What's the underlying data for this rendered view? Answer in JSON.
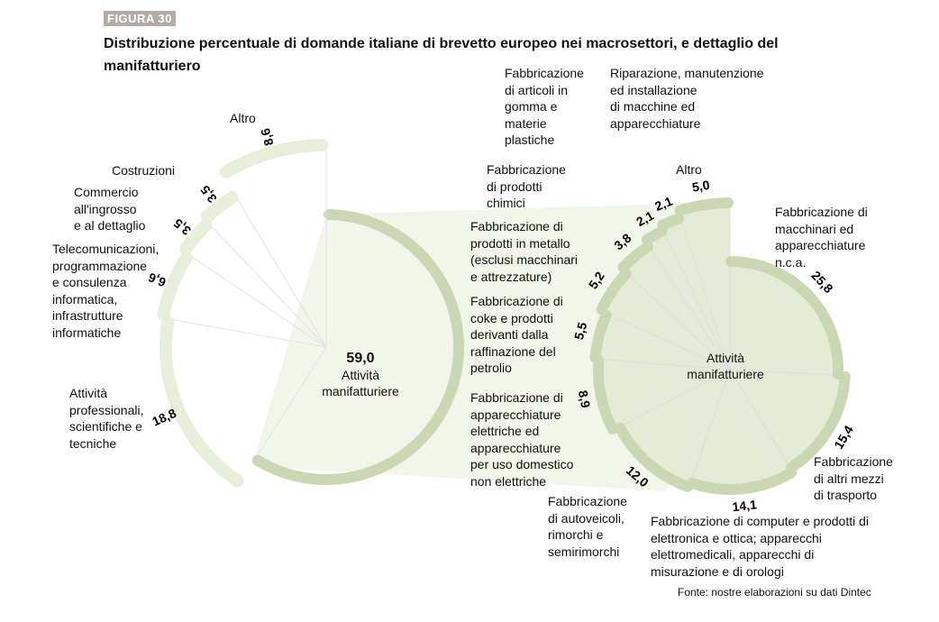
{
  "figure_label": "FIGURA 30",
  "title": "Distribuzione percentuale di domande italiane di brevetto europeo nei macrosettori, e dettaglio del manifatturiero",
  "source": "Fonte: nostre elaborazioni su dati Dintec",
  "chart_data": [
    {
      "type": "pie",
      "variant": "spiral",
      "categories": [
        "Attività manifatturiere",
        "Attività professionali, scientifiche e tecniche",
        "Telecomunicazioni, programmazione e consulenza informatica, infrastrutture informatiche",
        "Commercio all'ingrosso e al dettaglio",
        "Costruzioni",
        "Altro"
      ],
      "values": [
        59.0,
        18.8,
        6.6,
        3.5,
        3.5,
        8.6
      ],
      "labels": [
        "59,0",
        "18,8",
        "6,6",
        "3,5",
        "3,5",
        "8,6"
      ],
      "colors": [
        "#c9d8b2",
        "#e7eed9",
        "#e7eed9",
        "#e7eed9",
        "#e7eed9",
        "#e7eed9"
      ]
    },
    {
      "type": "pie",
      "variant": "spiral",
      "center_label": "Attività manifatturiere",
      "categories": [
        "Fabbricazione di macchinari ed apparecchiature n.c.a.",
        "Fabbricazione di altri mezzi di trasporto",
        "Fabbricazione di computer e prodotti di elettronica e ottica; apparecchi elettromedicali, apparecchi di misurazione e di orologi",
        "Fabbricazione di autoveicoli, rimorchi e semirimorchi",
        "Fabbricazione di apparecchiature elettriche ed apparecchiature per uso domestico non elettriche",
        "Fabbricazione di coke e prodotti derivanti dalla raffinazione del petrolio",
        "Fabbricazione di prodotti in metallo (esclusi macchinari e attrezzature)",
        "Fabbricazione di prodotti chimici",
        "Fabbricazione di articoli in gomma e materie plastiche",
        "Riparazione, manutenzione ed installazione di macchine ed apparecchiature",
        "Altro"
      ],
      "values": [
        25.8,
        15.4,
        14.1,
        12.0,
        8.9,
        5.5,
        5.2,
        3.8,
        2.1,
        2.1,
        5.0
      ],
      "labels": [
        "25,8",
        "15,4",
        "14,1",
        "12,0",
        "8,9",
        "5,5",
        "5,2",
        "3,8",
        "2,1",
        "2,1",
        "5,0"
      ],
      "color": "#c9d8b2",
      "fill": "#e5ebd6"
    }
  ],
  "left_labels": {
    "altro": "Altro",
    "costruzioni": "Costruzioni",
    "commercio": "Commercio\nall'ingrosso\ne al dettaglio",
    "telecom": "Telecomunicazioni,\nprogrammazione\ne consulenza\ninformatica,\ninfrastrutture\ninformatiche",
    "professionali": "Attività\nprofessionali,\nscientifiche e\ntecniche",
    "center_value": "59,0",
    "center_label": "Attività\nmanifatturiere"
  },
  "right_labels": {
    "gomma": "Fabbricazione\ndi articoli in\ngomma e\nmaterie\nplastiche",
    "riparazione": "Riparazione, manutenzione\ned installazione\ndi macchine ed\napparecchiature",
    "chimici": "Fabbricazione\ndi prodotti\nchimici",
    "altro": "Altro",
    "macchinari": "Fabbricazione di\nmacchinari ed\napparecchiature\nn.c.a.",
    "metallo": "Fabbricazione di\nprodotti in metallo\n(esclusi macchinari\ne attrezzature)",
    "coke": "Fabbricazione di\ncoke e prodotti\nderivanti dalla\nraffinazione del\npetrolio",
    "elettriche": "Fabbricazione di\napparecchiature\nelettriche ed\napparecchiature\nper uso domestico\nnon elettriche",
    "autoveicoli": "Fabbricazione\ndi autoveicoli,\nrimorchi e\nsemirimorchi",
    "computer": "Fabbricazione di computer e prodotti di\nelettronica e ottica; apparecchi\nelettromedicali, apparecchi di\nmisurazione e di orologi",
    "trasporto": "Fabbricazione\ndi altri mezzi\ndi trasporto",
    "center_label": "Attività\nmanifatturiere"
  }
}
